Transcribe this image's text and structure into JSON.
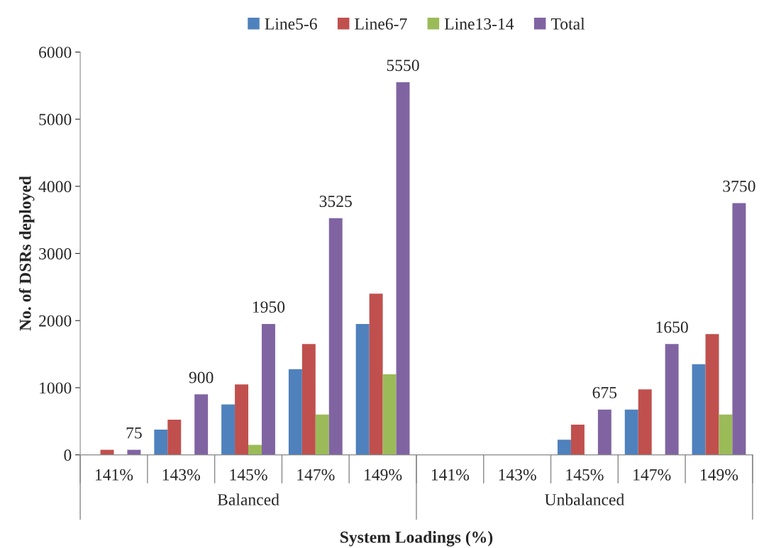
{
  "chart_data": {
    "type": "bar",
    "xlabel": "System Loadings (%)",
    "ylabel": "No. of DSRs deployed",
    "categories": [
      "141%",
      "143%",
      "145%",
      "147%",
      "149%",
      "141%",
      "143%",
      "145%",
      "147%",
      "149%"
    ],
    "series": [
      {
        "name": "Line5-6",
        "color": "#4f81bd",
        "values": [
          0,
          375,
          750,
          1275,
          1950,
          0,
          0,
          225,
          675,
          1350
        ]
      },
      {
        "name": "Line6-7",
        "color": "#c0504d",
        "values": [
          75,
          525,
          1050,
          1650,
          2400,
          0,
          0,
          450,
          975,
          1800
        ]
      },
      {
        "name": "Line13-14",
        "color": "#9bbb59",
        "values": [
          0,
          0,
          150,
          600,
          1200,
          0,
          0,
          0,
          0,
          600
        ]
      },
      {
        "name": "Total",
        "color": "#8064a2",
        "values": [
          75,
          900,
          1950,
          3525,
          5550,
          0,
          0,
          675,
          1650,
          3750
        ],
        "value_labels": [
          "75",
          "900",
          "1950",
          "3525",
          "5550",
          null,
          null,
          "675",
          "1650",
          "3750"
        ]
      }
    ],
    "annotations": [
      "Balanced",
      "Unbalanced"
    ],
    "ylim": [
      0,
      6000
    ],
    "yticks": [
      0,
      1000,
      2000,
      3000,
      4000,
      5000,
      6000
    ],
    "grid": false,
    "legend": "top"
  }
}
